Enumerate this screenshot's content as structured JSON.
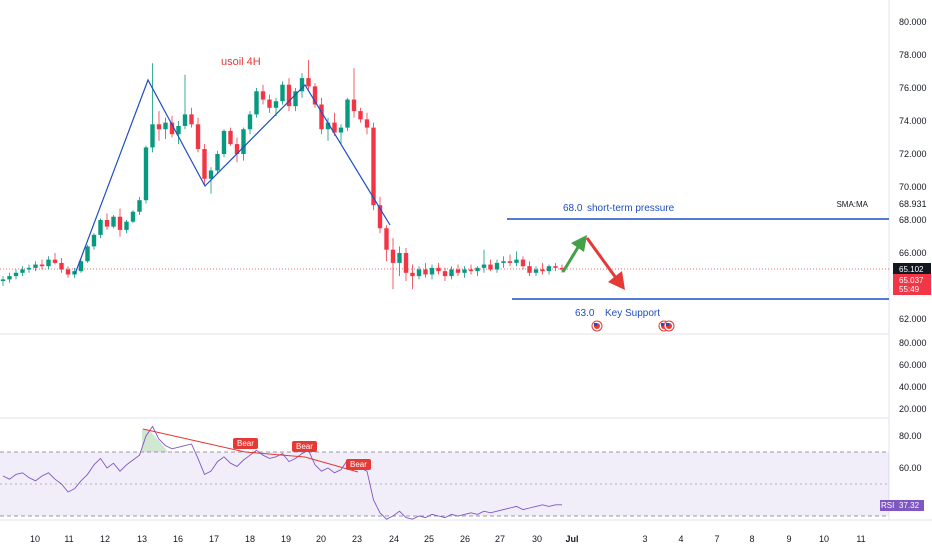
{
  "chart_data": {
    "type": "candlestick",
    "title": "usoil 4H",
    "price_axis": {
      "ticks": [
        "80.000",
        "78.000",
        "76.000",
        "74.000",
        "72.000",
        "70.000",
        "68.000",
        "66.000",
        "62.000"
      ],
      "ylim": [
        61.5,
        81.5
      ]
    },
    "volume_axis": {
      "ticks": [
        "80.000",
        "60.000",
        "40.000",
        "20.000"
      ]
    },
    "rsi_axis": {
      "ticks": [
        "80.00",
        "60.00"
      ],
      "label": "RSI",
      "value": "37.32",
      "overbought": 70,
      "oversold": 30,
      "mid": 50
    },
    "x_ticks": [
      "10",
      "11",
      "12",
      "13",
      "16",
      "17",
      "18",
      "19",
      "20",
      "23",
      "24",
      "25",
      "26",
      "27",
      "30",
      "Jul",
      "3",
      "4",
      "7",
      "8",
      "9",
      "10",
      "11"
    ],
    "price_tags": {
      "last": "65.102",
      "current": "65.037",
      "countdown": "55:49",
      "sma_label": "SMA:MA",
      "sma_value": "68.931"
    },
    "levels": [
      {
        "value": "68.0",
        "label": "short-term pressure"
      },
      {
        "value": "63.0",
        "label": "Key Support"
      }
    ],
    "badges": [
      "Bear",
      "Bear",
      "Bear"
    ],
    "candles": [
      [
        64.3,
        64.6,
        64.0,
        64.4
      ],
      [
        64.4,
        64.8,
        64.2,
        64.6
      ],
      [
        64.6,
        65.0,
        64.4,
        64.8
      ],
      [
        64.8,
        65.2,
        64.6,
        65.0
      ],
      [
        65.0,
        65.3,
        64.8,
        65.1
      ],
      [
        65.1,
        65.5,
        64.9,
        65.3
      ],
      [
        65.3,
        65.6,
        65.0,
        65.2
      ],
      [
        65.2,
        65.8,
        65.0,
        65.6
      ],
      [
        65.6,
        66.0,
        65.3,
        65.4
      ],
      [
        65.4,
        65.7,
        64.8,
        65.0
      ],
      [
        65.0,
        65.2,
        64.5,
        64.7
      ],
      [
        64.7,
        65.1,
        64.5,
        64.9
      ],
      [
        64.9,
        65.6,
        64.8,
        65.5
      ],
      [
        65.5,
        66.5,
        65.4,
        66.4
      ],
      [
        66.4,
        67.2,
        66.2,
        67.1
      ],
      [
        67.1,
        68.1,
        66.9,
        68.0
      ],
      [
        68.0,
        68.4,
        67.4,
        67.6
      ],
      [
        67.6,
        68.3,
        67.5,
        68.2
      ],
      [
        68.2,
        68.7,
        67.0,
        67.4
      ],
      [
        67.4,
        68.0,
        67.2,
        67.9
      ],
      [
        67.9,
        68.6,
        67.8,
        68.5
      ],
      [
        68.5,
        69.4,
        68.3,
        69.2
      ],
      [
        69.2,
        72.5,
        69.0,
        72.4
      ],
      [
        72.4,
        77.5,
        72.1,
        73.8
      ],
      [
        73.8,
        74.6,
        72.8,
        73.5
      ],
      [
        73.5,
        74.2,
        72.9,
        73.9
      ],
      [
        73.9,
        74.3,
        73.0,
        73.2
      ],
      [
        73.2,
        74.0,
        72.6,
        73.7
      ],
      [
        73.7,
        76.8,
        73.5,
        74.4
      ],
      [
        74.4,
        74.8,
        73.6,
        73.8
      ],
      [
        73.8,
        74.2,
        72.1,
        72.3
      ],
      [
        72.3,
        72.6,
        70.1,
        70.5
      ],
      [
        70.5,
        71.2,
        69.6,
        71.0
      ],
      [
        71.0,
        72.2,
        70.8,
        72.0
      ],
      [
        72.0,
        73.5,
        71.8,
        73.4
      ],
      [
        73.4,
        73.6,
        72.5,
        72.6
      ],
      [
        72.6,
        73.0,
        71.5,
        72.0
      ],
      [
        72.0,
        73.6,
        71.6,
        73.5
      ],
      [
        73.5,
        74.6,
        73.2,
        74.4
      ],
      [
        74.4,
        76.0,
        74.2,
        75.8
      ],
      [
        75.8,
        76.2,
        75.0,
        75.3
      ],
      [
        75.3,
        75.6,
        74.5,
        74.8
      ],
      [
        74.8,
        75.4,
        74.3,
        75.2
      ],
      [
        75.2,
        76.4,
        75.0,
        76.2
      ],
      [
        76.2,
        76.6,
        74.6,
        74.9
      ],
      [
        74.9,
        76.0,
        74.6,
        75.8
      ],
      [
        75.8,
        76.9,
        75.4,
        76.6
      ],
      [
        76.6,
        77.7,
        75.9,
        76.1
      ],
      [
        76.1,
        76.3,
        74.8,
        75.0
      ],
      [
        75.0,
        75.4,
        73.2,
        73.5
      ],
      [
        73.5,
        74.2,
        72.8,
        73.9
      ],
      [
        73.9,
        74.5,
        73.1,
        73.3
      ],
      [
        73.3,
        73.8,
        72.6,
        73.6
      ],
      [
        73.6,
        75.4,
        73.4,
        75.3
      ],
      [
        75.3,
        77.2,
        74.2,
        74.6
      ],
      [
        74.6,
        74.8,
        73.9,
        74.1
      ],
      [
        74.1,
        74.5,
        73.2,
        73.6
      ],
      [
        73.6,
        73.9,
        68.6,
        68.9
      ],
      [
        68.9,
        69.4,
        67.2,
        67.5
      ],
      [
        67.5,
        67.7,
        65.5,
        66.2
      ],
      [
        66.2,
        66.9,
        63.8,
        65.4
      ],
      [
        65.4,
        66.4,
        64.6,
        66.0
      ],
      [
        66.0,
        66.3,
        64.3,
        64.8
      ],
      [
        64.8,
        65.3,
        63.8,
        64.6
      ],
      [
        64.6,
        65.2,
        64.4,
        65.0
      ],
      [
        65.0,
        65.4,
        64.5,
        64.7
      ],
      [
        64.7,
        65.3,
        64.4,
        65.1
      ],
      [
        65.1,
        65.4,
        64.7,
        64.9
      ],
      [
        64.9,
        65.1,
        64.3,
        64.6
      ],
      [
        64.6,
        65.2,
        64.4,
        65.0
      ],
      [
        65.0,
        65.3,
        64.6,
        64.8
      ],
      [
        64.8,
        65.2,
        64.5,
        65.0
      ],
      [
        65.0,
        65.3,
        64.7,
        64.9
      ],
      [
        64.9,
        65.2,
        64.6,
        65.1
      ],
      [
        65.1,
        66.2,
        64.8,
        65.3
      ],
      [
        65.3,
        65.6,
        64.9,
        65.0
      ],
      [
        65.0,
        65.6,
        64.8,
        65.4
      ],
      [
        65.4,
        65.8,
        65.1,
        65.5
      ],
      [
        65.5,
        65.9,
        65.2,
        65.4
      ],
      [
        65.4,
        66.1,
        65.2,
        65.6
      ],
      [
        65.6,
        65.8,
        65.0,
        65.2
      ],
      [
        65.2,
        65.5,
        64.6,
        64.8
      ],
      [
        64.8,
        65.2,
        64.6,
        65.0
      ],
      [
        65.0,
        65.4,
        64.7,
        64.9
      ],
      [
        64.9,
        65.3,
        64.7,
        65.2
      ],
      [
        65.2,
        65.4,
        64.9,
        65.1
      ],
      [
        65.1,
        65.3,
        64.8,
        65.0
      ]
    ],
    "rsi": [
      55,
      53,
      56,
      57,
      54,
      52,
      55,
      57,
      53,
      50,
      45,
      47,
      52,
      56,
      62,
      66,
      60,
      63,
      58,
      62,
      65,
      68,
      80,
      86,
      78,
      74,
      72,
      73,
      74,
      75,
      66,
      56,
      58,
      64,
      67,
      63,
      61,
      65,
      68,
      71,
      68,
      66,
      67,
      69,
      64,
      66,
      69,
      71,
      62,
      58,
      60,
      57,
      59,
      65,
      63,
      60,
      58,
      40,
      32,
      28,
      30,
      33,
      29,
      28,
      30,
      29,
      31,
      30,
      29,
      31,
      30,
      31,
      32,
      31,
      33,
      32,
      33,
      34,
      35,
      36,
      34,
      35,
      36,
      37,
      36,
      37,
      37
    ]
  }
}
